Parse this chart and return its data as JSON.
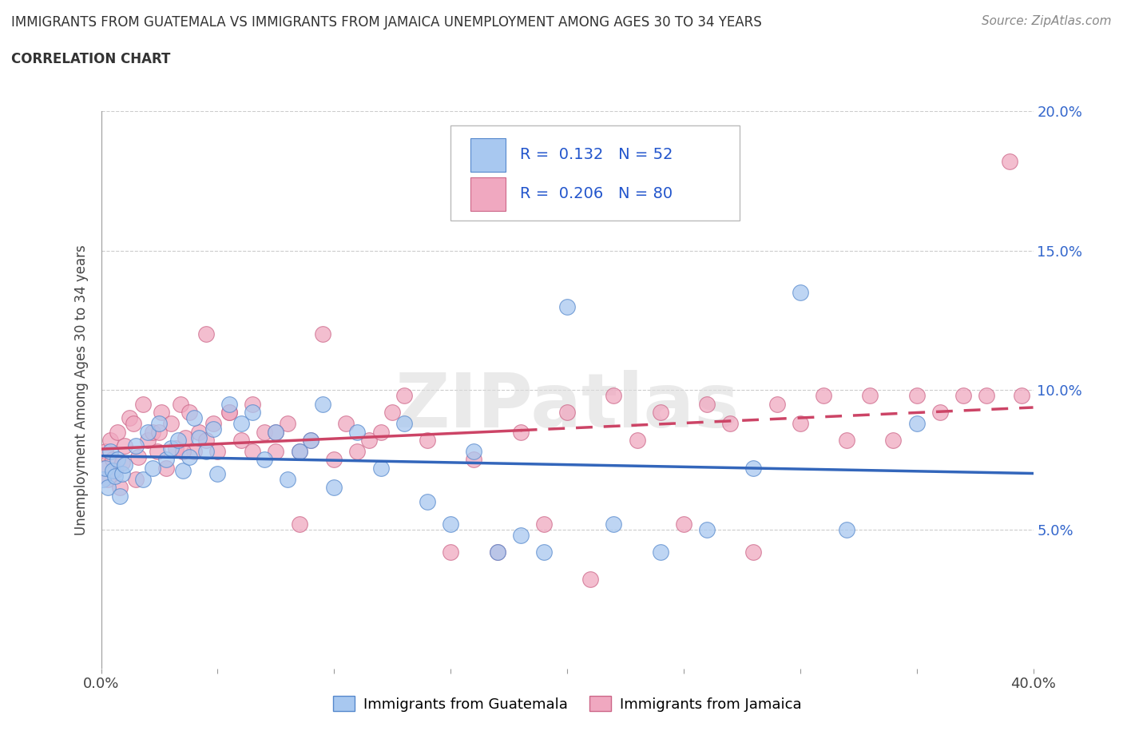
{
  "title_line1": "IMMIGRANTS FROM GUATEMALA VS IMMIGRANTS FROM JAMAICA UNEMPLOYMENT AMONG AGES 30 TO 34 YEARS",
  "title_line2": "CORRELATION CHART",
  "source_text": "Source: ZipAtlas.com",
  "ylabel": "Unemployment Among Ages 30 to 34 years",
  "xmin": 0.0,
  "xmax": 0.4,
  "ymin": 0.0,
  "ymax": 0.2,
  "guatemala_color": "#a8c8f0",
  "jamaica_color": "#f0a8c0",
  "guatemala_edge": "#5588cc",
  "jamaica_edge": "#cc6688",
  "trend_guatemala_color": "#3366bb",
  "trend_jamaica_color": "#cc4466",
  "R_guatemala": 0.132,
  "N_guatemala": 52,
  "R_jamaica": 0.206,
  "N_jamaica": 80,
  "watermark": "ZIPatlas",
  "guatemala_x": [
    0.001,
    0.002,
    0.003,
    0.004,
    0.005,
    0.006,
    0.007,
    0.008,
    0.009,
    0.01,
    0.015,
    0.018,
    0.02,
    0.022,
    0.025,
    0.028,
    0.03,
    0.033,
    0.035,
    0.038,
    0.04,
    0.042,
    0.045,
    0.048,
    0.05,
    0.055,
    0.06,
    0.065,
    0.07,
    0.075,
    0.08,
    0.085,
    0.09,
    0.095,
    0.1,
    0.11,
    0.12,
    0.13,
    0.14,
    0.15,
    0.16,
    0.17,
    0.18,
    0.19,
    0.2,
    0.22,
    0.24,
    0.26,
    0.28,
    0.3,
    0.32,
    0.35
  ],
  "guatemala_y": [
    0.068,
    0.072,
    0.065,
    0.078,
    0.071,
    0.069,
    0.075,
    0.062,
    0.07,
    0.073,
    0.08,
    0.068,
    0.085,
    0.072,
    0.088,
    0.075,
    0.079,
    0.082,
    0.071,
    0.076,
    0.09,
    0.083,
    0.078,
    0.086,
    0.07,
    0.095,
    0.088,
    0.092,
    0.075,
    0.085,
    0.068,
    0.078,
    0.082,
    0.095,
    0.065,
    0.085,
    0.072,
    0.088,
    0.06,
    0.052,
    0.078,
    0.042,
    0.048,
    0.042,
    0.13,
    0.052,
    0.042,
    0.05,
    0.072,
    0.135,
    0.05,
    0.088
  ],
  "jamaica_x": [
    0.001,
    0.002,
    0.003,
    0.004,
    0.005,
    0.006,
    0.007,
    0.008,
    0.009,
    0.01,
    0.012,
    0.014,
    0.016,
    0.018,
    0.02,
    0.022,
    0.024,
    0.026,
    0.028,
    0.03,
    0.032,
    0.034,
    0.036,
    0.038,
    0.04,
    0.042,
    0.045,
    0.048,
    0.05,
    0.055,
    0.06,
    0.065,
    0.07,
    0.075,
    0.08,
    0.085,
    0.09,
    0.095,
    0.1,
    0.105,
    0.11,
    0.115,
    0.12,
    0.125,
    0.13,
    0.14,
    0.15,
    0.16,
    0.17,
    0.18,
    0.19,
    0.2,
    0.21,
    0.22,
    0.23,
    0.24,
    0.25,
    0.26,
    0.27,
    0.28,
    0.29,
    0.3,
    0.31,
    0.32,
    0.33,
    0.34,
    0.35,
    0.36,
    0.37,
    0.38,
    0.39,
    0.395,
    0.015,
    0.025,
    0.035,
    0.045,
    0.055,
    0.065,
    0.075,
    0.085
  ],
  "jamaica_y": [
    0.072,
    0.078,
    0.068,
    0.082,
    0.075,
    0.071,
    0.085,
    0.065,
    0.074,
    0.08,
    0.09,
    0.088,
    0.076,
    0.095,
    0.082,
    0.085,
    0.078,
    0.092,
    0.072,
    0.088,
    0.079,
    0.095,
    0.083,
    0.092,
    0.078,
    0.085,
    0.12,
    0.088,
    0.078,
    0.092,
    0.082,
    0.095,
    0.085,
    0.078,
    0.088,
    0.052,
    0.082,
    0.12,
    0.075,
    0.088,
    0.078,
    0.082,
    0.085,
    0.092,
    0.098,
    0.082,
    0.042,
    0.075,
    0.042,
    0.085,
    0.052,
    0.092,
    0.032,
    0.098,
    0.082,
    0.092,
    0.052,
    0.095,
    0.088,
    0.042,
    0.095,
    0.088,
    0.098,
    0.082,
    0.098,
    0.082,
    0.098,
    0.092,
    0.098,
    0.098,
    0.182,
    0.098,
    0.068,
    0.085,
    0.078,
    0.082,
    0.092,
    0.078,
    0.085,
    0.078
  ]
}
